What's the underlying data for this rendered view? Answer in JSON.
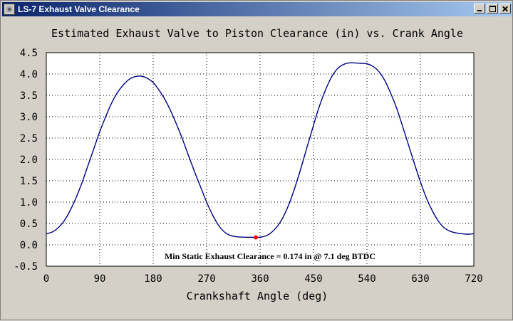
{
  "window": {
    "title": "LS-7 Exhaust Valve Clearance",
    "icon": "engine-app-icon",
    "buttons": [
      "minimize",
      "maximize",
      "close"
    ]
  },
  "chart_data": {
    "type": "line",
    "title": "Estimated Exhaust Valve to Piston Clearance (in) vs. Crank Angle",
    "xlabel": "Crankshaft Angle (deg)",
    "ylabel": "",
    "xlim": [
      0,
      720
    ],
    "ylim": [
      -0.5,
      4.5
    ],
    "xticks": [
      "0",
      "90",
      "180",
      "270",
      "360",
      "450",
      "540",
      "630",
      "720"
    ],
    "yticks": [
      "4.5",
      "4.0",
      "3.5",
      "3.0",
      "2.5",
      "2.0",
      "1.5",
      "1.0",
      "0.5",
      "0.0",
      "-0.5"
    ],
    "grid": true,
    "series": [
      {
        "color": "#000080",
        "x": [
          0,
          10,
          20,
          30,
          40,
          50,
          60,
          70,
          80,
          90,
          100,
          110,
          120,
          130,
          140,
          150,
          160,
          170,
          180,
          190,
          200,
          210,
          220,
          230,
          240,
          250,
          260,
          270,
          280,
          290,
          300,
          310,
          320,
          330,
          340,
          350,
          353,
          360,
          370,
          380,
          390,
          400,
          410,
          420,
          430,
          440,
          450,
          460,
          470,
          480,
          490,
          500,
          510,
          520,
          530,
          540,
          550,
          560,
          570,
          580,
          590,
          600,
          610,
          620,
          630,
          640,
          650,
          660,
          670,
          680,
          690,
          700,
          710,
          720
        ],
        "y": [
          0.26,
          0.3,
          0.4,
          0.56,
          0.8,
          1.1,
          1.45,
          1.85,
          2.25,
          2.65,
          3.0,
          3.32,
          3.57,
          3.75,
          3.88,
          3.94,
          3.95,
          3.9,
          3.8,
          3.62,
          3.4,
          3.12,
          2.8,
          2.45,
          2.07,
          1.7,
          1.35,
          1.0,
          0.7,
          0.46,
          0.3,
          0.22,
          0.19,
          0.18,
          0.178,
          0.175,
          0.174,
          0.18,
          0.21,
          0.3,
          0.45,
          0.68,
          1.0,
          1.4,
          1.85,
          2.33,
          2.8,
          3.25,
          3.62,
          3.92,
          4.12,
          4.22,
          4.26,
          4.26,
          4.25,
          4.24,
          4.18,
          4.06,
          3.85,
          3.55,
          3.2,
          2.78,
          2.34,
          1.9,
          1.48,
          1.1,
          0.8,
          0.56,
          0.4,
          0.32,
          0.28,
          0.26,
          0.25,
          0.26
        ]
      }
    ],
    "min_point": {
      "x": 352.9,
      "y": 0.174,
      "color": "#ff0000"
    },
    "annotation": "Min Static Exhaust Clearance = 0.174 in @ 7.1 deg BTDC"
  }
}
